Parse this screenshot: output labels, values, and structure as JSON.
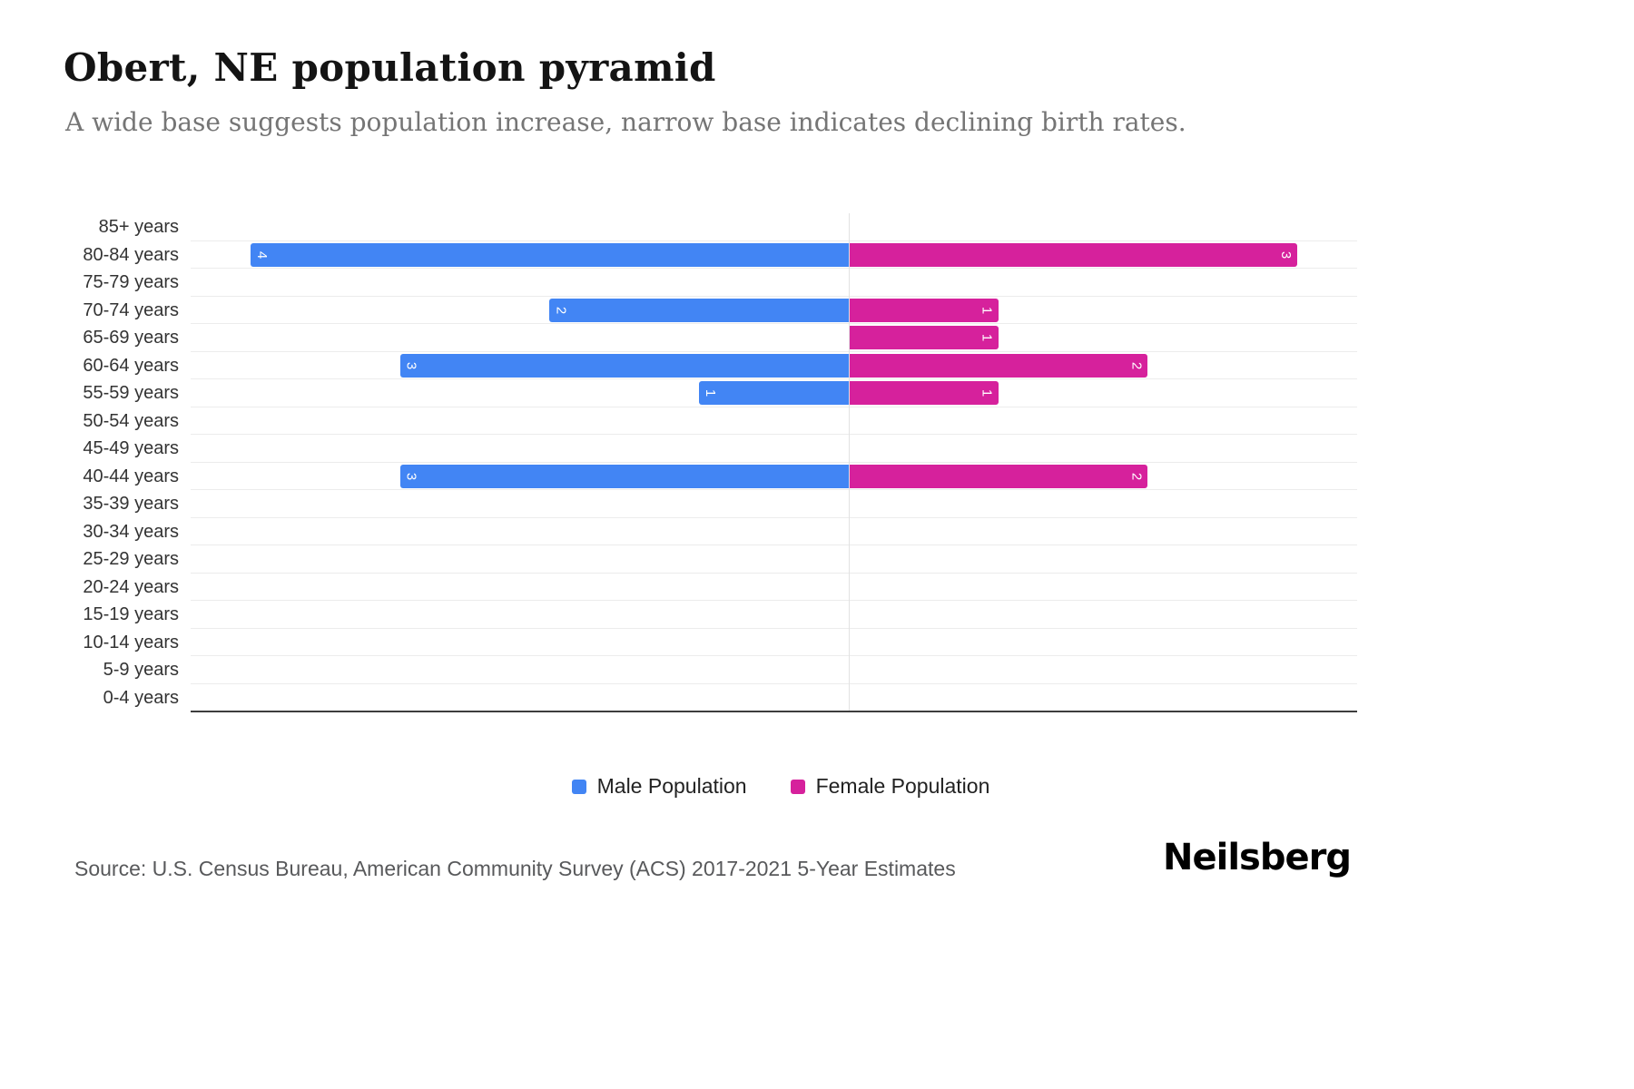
{
  "header": {
    "title": "Obert, NE population pyramid",
    "subtitle": "A wide base suggests population increase, narrow base indicates declining birth rates."
  },
  "chart_data": {
    "type": "bar",
    "variant": "population-pyramid",
    "title": "Obert, NE population pyramid",
    "categories": [
      "85+ years",
      "80-84 years",
      "75-79 years",
      "70-74 years",
      "65-69 years",
      "60-64 years",
      "55-59 years",
      "50-54 years",
      "45-49 years",
      "40-44 years",
      "35-39 years",
      "30-34 years",
      "25-29 years",
      "20-24 years",
      "15-19 years",
      "10-14 years",
      "5-9 years",
      "0-4 years"
    ],
    "series": [
      {
        "name": "Male Population",
        "side": "left",
        "color": "#4285F4",
        "values": [
          0,
          4,
          0,
          2,
          0,
          3,
          1,
          0,
          0,
          3,
          0,
          0,
          0,
          0,
          0,
          0,
          0,
          0
        ]
      },
      {
        "name": "Female Population",
        "side": "right",
        "color": "#D6219C",
        "values": [
          0,
          3,
          0,
          1,
          1,
          2,
          1,
          0,
          0,
          2,
          0,
          0,
          0,
          0,
          0,
          0,
          0,
          0
        ]
      }
    ],
    "axis": {
      "male_max": 4.4,
      "female_max": 3.4
    },
    "grid": true,
    "legend_position": "bottom",
    "bar_label_color": "#ffffff"
  },
  "footer": {
    "source": "Source: U.S. Census Bureau, American Community Survey (ACS) 2017-2021 5-Year Estimates",
    "brand": "Neilsberg"
  }
}
